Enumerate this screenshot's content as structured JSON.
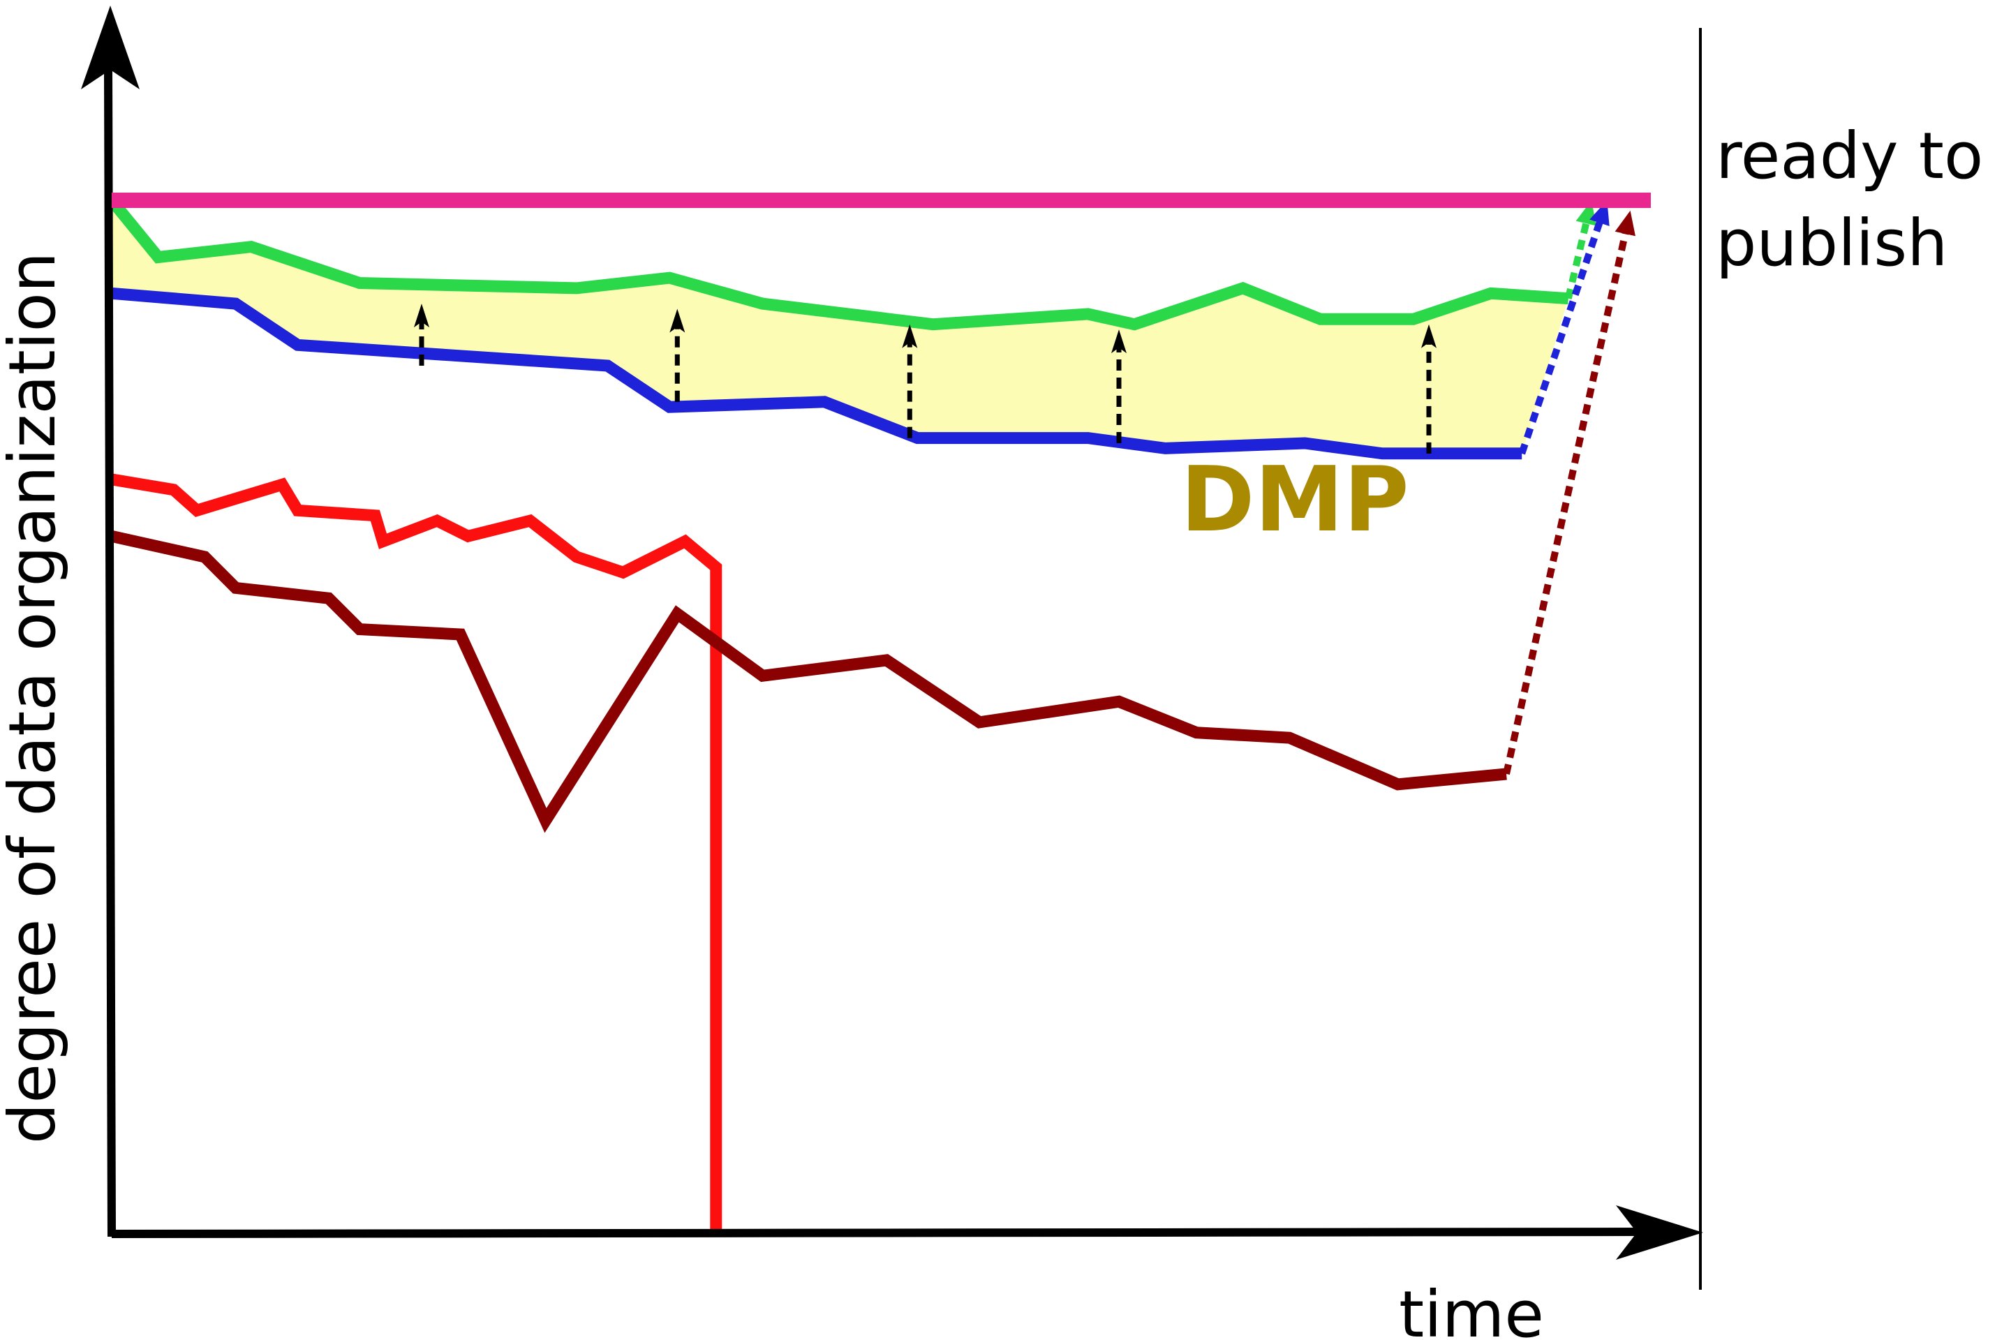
{
  "chart_data": {
    "type": "line",
    "xlabel": "time",
    "ylabel": "degree of data organization",
    "threshold_label_lines": [
      "ready to",
      "publish"
    ],
    "band_label": "DMP",
    "xlim": [
      0,
      100
    ],
    "ylim": [
      0,
      100
    ],
    "threshold": {
      "y": 100,
      "color": "#e8288e"
    },
    "band": {
      "upper_series": "green",
      "lower_series": "blue",
      "fill": "#fdfcb4"
    },
    "label_color": "#a98a00",
    "boundary_x": 100,
    "series": [
      {
        "key": "green",
        "color": "#2ad84a",
        "points": [
          [
            0,
            100
          ],
          [
            3,
            94.5
          ],
          [
            9,
            95.5
          ],
          [
            16,
            92
          ],
          [
            30,
            91.5
          ],
          [
            36,
            92.5
          ],
          [
            42,
            90
          ],
          [
            53,
            88
          ],
          [
            63,
            89
          ],
          [
            66,
            88
          ],
          [
            73,
            91.5
          ],
          [
            78,
            88.5
          ],
          [
            84,
            88.5
          ],
          [
            89,
            91
          ],
          [
            94,
            90.5
          ]
        ],
        "dotted_to": [
          95.5,
          100
        ]
      },
      {
        "key": "blue",
        "color": "#1e22d8",
        "points": [
          [
            0,
            91
          ],
          [
            8,
            90
          ],
          [
            12,
            86
          ],
          [
            32,
            84
          ],
          [
            36,
            80
          ],
          [
            46,
            80.5
          ],
          [
            52,
            77
          ],
          [
            63,
            77
          ],
          [
            68,
            76
          ],
          [
            77,
            76.5
          ],
          [
            82,
            75.5
          ],
          [
            91,
            75.5
          ]
        ],
        "dotted_to": [
          96.5,
          100
        ]
      },
      {
        "key": "red",
        "color": "#fc0f0f",
        "points": [
          [
            0,
            73
          ],
          [
            4,
            72
          ],
          [
            5.5,
            70
          ],
          [
            11,
            72.5
          ],
          [
            12,
            70
          ],
          [
            17,
            69.5
          ],
          [
            17.5,
            67
          ],
          [
            21,
            69
          ],
          [
            23,
            67.5
          ],
          [
            27,
            69
          ],
          [
            30,
            65.5
          ],
          [
            33,
            64
          ],
          [
            37,
            67
          ],
          [
            39,
            64.5
          ],
          [
            39,
            0
          ]
        ]
      },
      {
        "key": "darkred",
        "color": "#8b0000",
        "points": [
          [
            0,
            67.5
          ],
          [
            6,
            65.5
          ],
          [
            8,
            62.5
          ],
          [
            14,
            61.5
          ],
          [
            16,
            58.5
          ],
          [
            22.5,
            58
          ],
          [
            28,
            40
          ],
          [
            36.5,
            60
          ],
          [
            42,
            54
          ],
          [
            50,
            55.5
          ],
          [
            56,
            49.5
          ],
          [
            65,
            51.5
          ],
          [
            70,
            48.5
          ],
          [
            76,
            48
          ],
          [
            83,
            43.5
          ],
          [
            90,
            44.5
          ]
        ],
        "dotted_to": [
          98,
          99
        ]
      }
    ],
    "arrows": [
      {
        "x": 20,
        "from": 84,
        "to": 90
      },
      {
        "x": 36.5,
        "from": 80.5,
        "to": 89.5
      },
      {
        "x": 51.5,
        "from": 77,
        "to": 88
      },
      {
        "x": 65,
        "from": 76.5,
        "to": 87.5
      },
      {
        "x": 85,
        "from": 75.5,
        "to": 88
      }
    ]
  }
}
